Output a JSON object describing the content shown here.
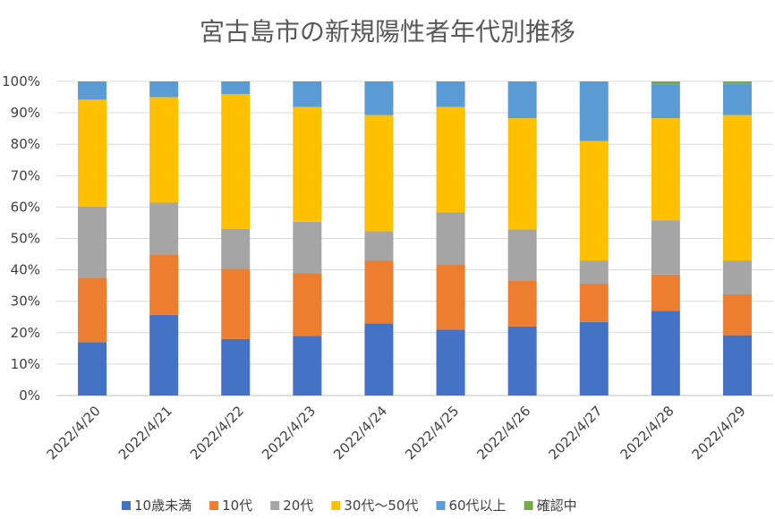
{
  "chart_data": {
    "type": "bar",
    "stacked": true,
    "percent": true,
    "title": "宮古島市の新規陽性者年代別推移",
    "xlabel": "",
    "ylabel": "",
    "ylim": [
      0,
      100
    ],
    "y_ticks": [
      "0%",
      "10%",
      "20%",
      "30%",
      "40%",
      "50%",
      "60%",
      "70%",
      "80%",
      "90%",
      "100%"
    ],
    "categories": [
      "2022/4/20",
      "2022/4/21",
      "2022/4/22",
      "2022/4/23",
      "2022/4/24",
      "2022/4/25",
      "2022/4/26",
      "2022/4/27",
      "2022/4/28",
      "2022/4/29"
    ],
    "legend_position": "bottom",
    "grid": true,
    "series": [
      {
        "name": "10歳未満",
        "color": "#4472C4",
        "values": [
          17,
          25.7,
          18,
          19,
          23,
          21,
          22,
          23.4,
          27,
          19.2
        ]
      },
      {
        "name": "10代",
        "color": "#ED7D31",
        "values": [
          20.5,
          19.2,
          22.3,
          20,
          20,
          20.6,
          14.7,
          12.2,
          11.5,
          13
        ]
      },
      {
        "name": "20代",
        "color": "#A5A5A5",
        "values": [
          22.7,
          16.5,
          12.7,
          16.3,
          9.3,
          16.7,
          16.2,
          7.4,
          17.3,
          10.8
        ]
      },
      {
        "name": "30代～50代",
        "color": "#FFC000",
        "values": [
          34,
          33.6,
          43,
          36.6,
          37,
          33.6,
          35.4,
          38,
          32.5,
          46.3
        ]
      },
      {
        "name": "60代以上",
        "color": "#5B9BD5",
        "values": [
          5.8,
          5,
          4,
          8.1,
          10.7,
          8.1,
          11.7,
          19,
          10.8,
          9.9
        ]
      },
      {
        "name": "確認中",
        "color": "#70AD47",
        "values": [
          0,
          0,
          0,
          0,
          0,
          0,
          0,
          0,
          0.9,
          0.8
        ]
      }
    ]
  }
}
